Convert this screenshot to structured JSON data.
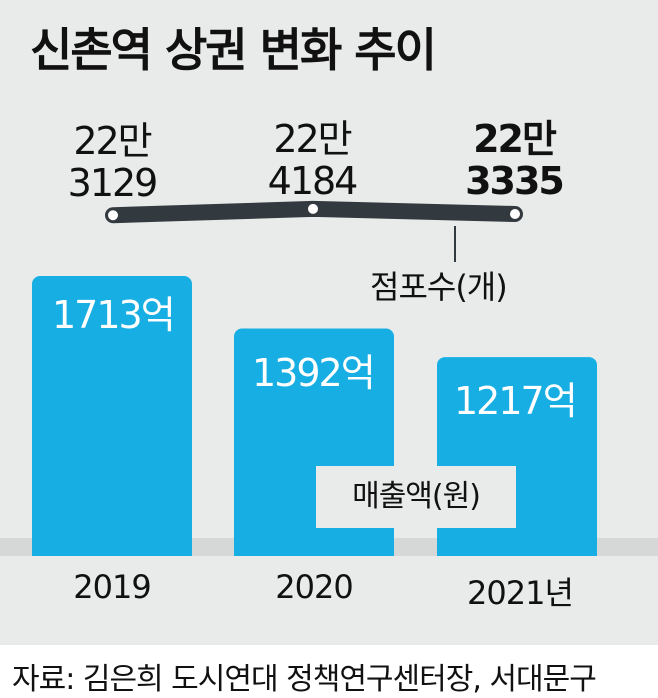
{
  "title": "신촌역 상권 변화 추이",
  "source": "자료: 김은희 도시연대 정책연구센터장, 서대문구",
  "chart_data": {
    "type": "bar",
    "categories": [
      "2019",
      "2020",
      "2021년"
    ],
    "series": [
      {
        "name": "매출액(원)",
        "values": [
          1713,
          1392,
          1217
        ],
        "value_labels": [
          "1713억",
          "1392억",
          "1217억"
        ],
        "unit": "억",
        "color": "#16aee3"
      },
      {
        "name": "점포수(개)",
        "type": "line",
        "values": [
          223129,
          224184,
          223335
        ],
        "value_labels": [
          [
            "22만",
            "3129"
          ],
          [
            "22만",
            "4184"
          ],
          [
            "22만",
            "3335"
          ]
        ],
        "color": "#333a3f"
      }
    ],
    "xlabel": "",
    "ylabel": "",
    "grid": false,
    "legend": "inline"
  }
}
